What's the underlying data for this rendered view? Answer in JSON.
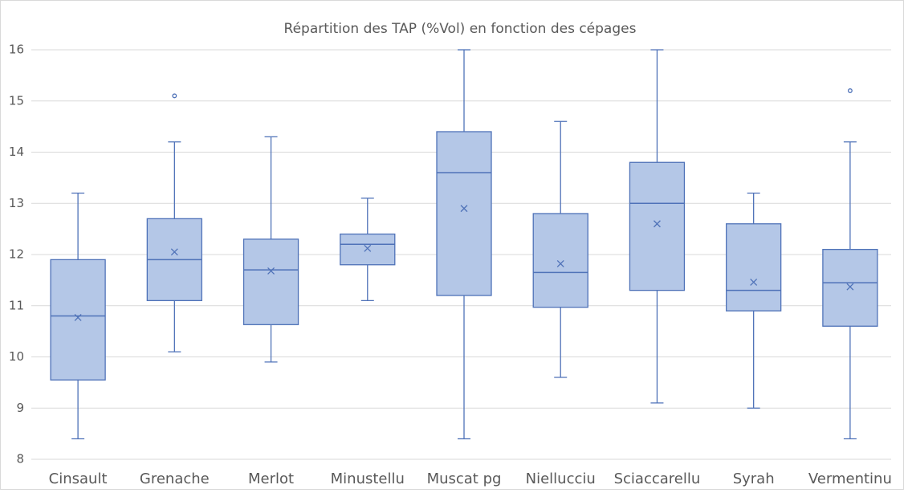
{
  "chart_data": {
    "type": "box",
    "title": "Répartition des TAP (%Vol) en fonction des cépages",
    "categories": [
      "Cinsault",
      "Grenache",
      "Merlot",
      "Minustellu",
      "Muscat pg",
      "Niellucciu",
      "Sciaccarellu",
      "Syrah",
      "Vermentinu"
    ],
    "boxes": [
      {
        "min": 8.4,
        "q1": 9.55,
        "median": 10.8,
        "q3": 11.9,
        "max": 13.2,
        "mean": 10.77,
        "outliers": []
      },
      {
        "min": 10.1,
        "q1": 11.1,
        "median": 11.9,
        "q3": 12.7,
        "max": 14.2,
        "mean": 12.05,
        "outliers": [
          15.1
        ]
      },
      {
        "min": 9.9,
        "q1": 10.63,
        "median": 11.7,
        "q3": 12.3,
        "max": 14.3,
        "mean": 11.68,
        "outliers": []
      },
      {
        "min": 11.1,
        "q1": 11.8,
        "median": 12.2,
        "q3": 12.4,
        "max": 13.1,
        "mean": 12.12,
        "outliers": []
      },
      {
        "min": 8.4,
        "q1": 11.2,
        "median": 13.6,
        "q3": 14.4,
        "max": 16,
        "mean": 12.9,
        "outliers": []
      },
      {
        "min": 9.6,
        "q1": 10.97,
        "median": 11.65,
        "q3": 12.8,
        "max": 14.6,
        "mean": 11.82,
        "outliers": []
      },
      {
        "min": 9.1,
        "q1": 11.3,
        "median": 13,
        "q3": 13.8,
        "max": 16,
        "mean": 12.6,
        "outliers": []
      },
      {
        "min": 9,
        "q1": 10.9,
        "median": 11.3,
        "q3": 12.6,
        "max": 13.2,
        "mean": 11.46,
        "outliers": []
      },
      {
        "min": 8.4,
        "q1": 10.6,
        "median": 11.45,
        "q3": 12.1,
        "max": 14.2,
        "mean": 11.37,
        "outliers": [
          15.2
        ]
      }
    ],
    "color": "#b4c7e7",
    "edge_color": "#4f72b8",
    "ylim": [
      8,
      16
    ],
    "yticks": [
      8,
      9,
      10,
      11,
      12,
      13,
      14,
      15,
      16
    ],
    "grid": true
  }
}
